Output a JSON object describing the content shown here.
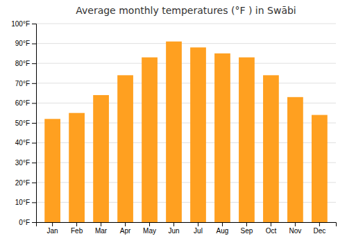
{
  "chart_data": {
    "type": "bar",
    "title": "Average monthly temperatures (°F ) in Swābi",
    "categories": [
      "Jan",
      "Feb",
      "Mar",
      "Apr",
      "May",
      "Jun",
      "Jul",
      "Aug",
      "Sep",
      "Oct",
      "Nov",
      "Dec"
    ],
    "values": [
      52,
      55,
      64,
      74,
      83,
      91,
      88,
      85,
      83,
      74,
      63,
      54
    ],
    "color": "#FFA020",
    "ylim": [
      0,
      100
    ],
    "yticks": [
      {
        "value": 0,
        "label": "0°F"
      },
      {
        "value": 10,
        "label": "10°F"
      },
      {
        "value": 20,
        "label": "20°F"
      },
      {
        "value": 30,
        "label": "30°F"
      },
      {
        "value": 40,
        "label": "40°F"
      },
      {
        "value": 50,
        "label": "50°F"
      },
      {
        "value": 60,
        "label": "60°F"
      },
      {
        "value": 70,
        "label": "70°F"
      },
      {
        "value": 80,
        "label": "80°F"
      },
      {
        "value": 90,
        "label": "90°F"
      },
      {
        "value": 100,
        "label": "100°F"
      }
    ],
    "grid": true
  }
}
